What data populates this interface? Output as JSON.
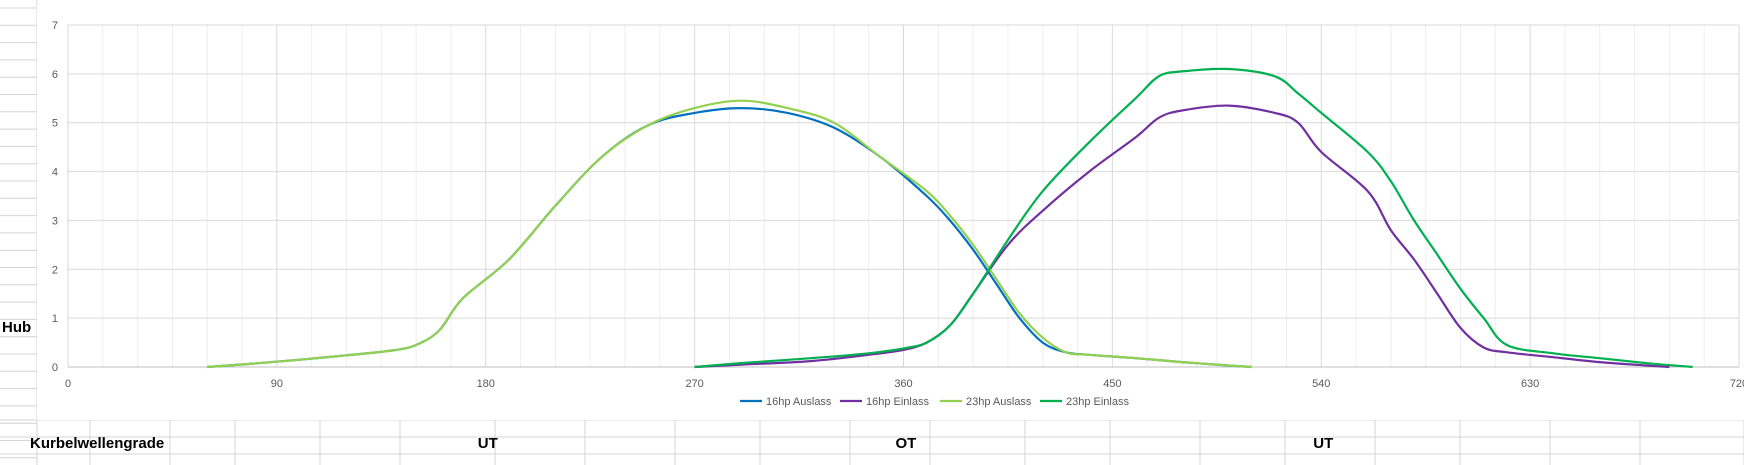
{
  "sheet": {
    "ylabel_cell": "Hub",
    "xlabel_cell": "Kurbelwellengrade",
    "markers": [
      {
        "text": "UT",
        "deg": 180
      },
      {
        "text": "OT",
        "deg": 360
      },
      {
        "text": "UT",
        "deg": 540
      }
    ]
  },
  "chart_data": {
    "type": "line",
    "title": "",
    "xlabel": "",
    "ylabel": "",
    "xlim": [
      0,
      720
    ],
    "ylim": [
      0,
      7
    ],
    "xticks": [
      0,
      90,
      180,
      270,
      360,
      450,
      540,
      630,
      720
    ],
    "yticks": [
      0,
      1,
      2,
      3,
      4,
      5,
      6,
      7
    ],
    "grid": true,
    "legend_position": "bottom",
    "series": [
      {
        "name": "16hp Auslass",
        "color": "#0070C0",
        "points": [
          [
            60,
            0
          ],
          [
            80,
            0.07
          ],
          [
            100,
            0.15
          ],
          [
            120,
            0.24
          ],
          [
            140,
            0.34
          ],
          [
            150,
            0.45
          ],
          [
            160,
            0.75
          ],
          [
            170,
            1.4
          ],
          [
            190,
            2.2
          ],
          [
            210,
            3.3
          ],
          [
            230,
            4.3
          ],
          [
            250,
            4.95
          ],
          [
            270,
            5.2
          ],
          [
            290,
            5.3
          ],
          [
            310,
            5.2
          ],
          [
            330,
            4.9
          ],
          [
            350,
            4.3
          ],
          [
            370,
            3.5
          ],
          [
            380,
            3.0
          ],
          [
            390,
            2.4
          ],
          [
            400,
            1.7
          ],
          [
            410,
            1.0
          ],
          [
            420,
            0.5
          ],
          [
            430,
            0.3
          ],
          [
            440,
            0.25
          ],
          [
            460,
            0.18
          ],
          [
            480,
            0.1
          ],
          [
            500,
            0.03
          ],
          [
            510,
            0
          ]
        ]
      },
      {
        "name": "16hp Einlass",
        "color": "#7030A0",
        "points": [
          [
            270,
            0
          ],
          [
            290,
            0.05
          ],
          [
            320,
            0.12
          ],
          [
            345,
            0.25
          ],
          [
            360,
            0.35
          ],
          [
            370,
            0.5
          ],
          [
            380,
            0.85
          ],
          [
            390,
            1.5
          ],
          [
            405,
            2.5
          ],
          [
            420,
            3.2
          ],
          [
            440,
            4.0
          ],
          [
            460,
            4.7
          ],
          [
            470,
            5.1
          ],
          [
            480,
            5.25
          ],
          [
            500,
            5.35
          ],
          [
            520,
            5.2
          ],
          [
            530,
            5.0
          ],
          [
            540,
            4.4
          ],
          [
            560,
            3.6
          ],
          [
            570,
            2.8
          ],
          [
            580,
            2.2
          ],
          [
            590,
            1.5
          ],
          [
            600,
            0.8
          ],
          [
            610,
            0.4
          ],
          [
            620,
            0.3
          ],
          [
            640,
            0.2
          ],
          [
            660,
            0.1
          ],
          [
            680,
            0.03
          ],
          [
            690,
            0
          ]
        ]
      },
      {
        "name": "23hp Auslass",
        "color": "#92D050",
        "points": [
          [
            60,
            0
          ],
          [
            80,
            0.07
          ],
          [
            100,
            0.15
          ],
          [
            120,
            0.24
          ],
          [
            140,
            0.34
          ],
          [
            150,
            0.45
          ],
          [
            160,
            0.75
          ],
          [
            170,
            1.4
          ],
          [
            190,
            2.2
          ],
          [
            210,
            3.3
          ],
          [
            230,
            4.3
          ],
          [
            250,
            4.95
          ],
          [
            270,
            5.3
          ],
          [
            290,
            5.45
          ],
          [
            310,
            5.3
          ],
          [
            330,
            5.0
          ],
          [
            350,
            4.3
          ],
          [
            370,
            3.6
          ],
          [
            380,
            3.1
          ],
          [
            390,
            2.5
          ],
          [
            400,
            1.8
          ],
          [
            410,
            1.1
          ],
          [
            420,
            0.6
          ],
          [
            430,
            0.3
          ],
          [
            440,
            0.25
          ],
          [
            460,
            0.18
          ],
          [
            480,
            0.1
          ],
          [
            500,
            0.03
          ],
          [
            510,
            0
          ]
        ]
      },
      {
        "name": "23hp Einlass",
        "color": "#00B050",
        "points": [
          [
            270,
            0
          ],
          [
            290,
            0.08
          ],
          [
            320,
            0.18
          ],
          [
            345,
            0.28
          ],
          [
            360,
            0.38
          ],
          [
            370,
            0.5
          ],
          [
            380,
            0.85
          ],
          [
            390,
            1.5
          ],
          [
            405,
            2.6
          ],
          [
            420,
            3.6
          ],
          [
            440,
            4.6
          ],
          [
            460,
            5.5
          ],
          [
            470,
            5.95
          ],
          [
            480,
            6.05
          ],
          [
            500,
            6.1
          ],
          [
            520,
            5.95
          ],
          [
            530,
            5.6
          ],
          [
            540,
            5.2
          ],
          [
            560,
            4.4
          ],
          [
            570,
            3.8
          ],
          [
            580,
            3.0
          ],
          [
            590,
            2.3
          ],
          [
            600,
            1.6
          ],
          [
            610,
            1.0
          ],
          [
            620,
            0.45
          ],
          [
            640,
            0.28
          ],
          [
            660,
            0.18
          ],
          [
            680,
            0.08
          ],
          [
            700,
            0
          ]
        ]
      }
    ]
  }
}
